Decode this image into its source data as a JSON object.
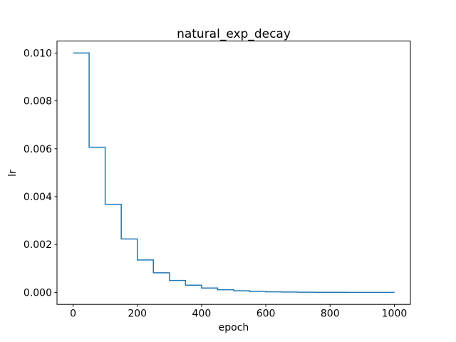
{
  "chart_data": {
    "type": "line",
    "subtype": "step-post",
    "title": "natural_exp_decay",
    "xlabel": "epoch",
    "ylabel": "lr",
    "line_color": "#1f77b4",
    "line_width": 1.5,
    "background": "#ffffff",
    "spine_color": "#000000",
    "grid": false,
    "legend_position": "none",
    "xlim": [
      -50,
      1050
    ],
    "ylim": [
      -0.0005,
      0.0105
    ],
    "x_tick_values": [
      0,
      200,
      400,
      600,
      800,
      1000
    ],
    "x_tick_labels": [
      "0",
      "200",
      "400",
      "600",
      "800",
      "1000"
    ],
    "y_tick_values": [
      0.0,
      0.002,
      0.004,
      0.006,
      0.008,
      0.01
    ],
    "y_tick_labels": [
      "0.000",
      "0.002",
      "0.004",
      "0.006",
      "0.008",
      "0.010"
    ],
    "x": [
      0,
      50,
      100,
      150,
      200,
      250,
      300,
      350,
      400,
      450,
      500,
      550,
      600,
      650,
      700,
      750,
      800,
      850,
      900,
      950,
      1000
    ],
    "y": [
      0.01,
      0.0060653,
      0.0036788,
      0.0022313,
      0.0013534,
      0.00082085,
      0.00049787,
      0.00030197,
      0.00018316,
      0.00011109,
      6.7379e-05,
      4.0868e-05,
      2.4788e-05,
      1.5034e-05,
      9.1188e-06,
      5.5308e-06,
      3.3546e-06,
      2.0347e-06,
      1.2341e-06,
      7.4852e-07,
      4.54e-07
    ]
  }
}
